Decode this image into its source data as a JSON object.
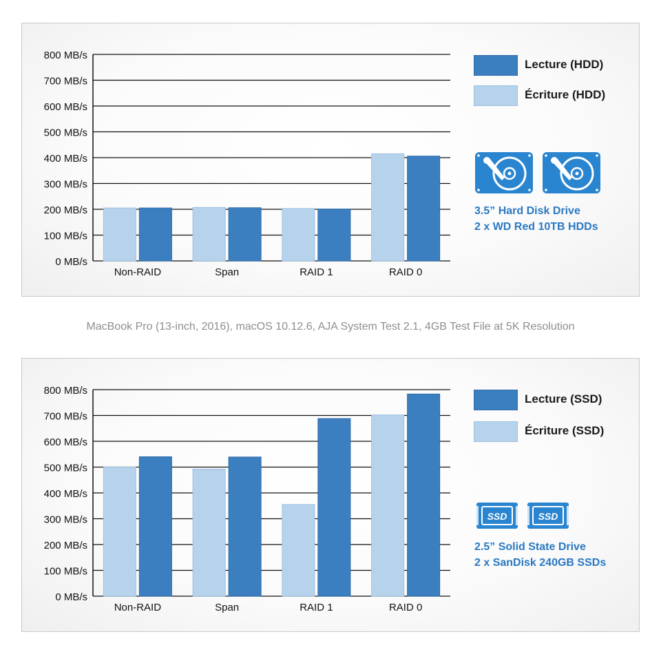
{
  "caption": "MacBook Pro (13-inch, 2016), macOS 10.12.6, AJA System Test 2.1, 4GB Test File at 5K Resolution",
  "colors": {
    "read": "#3c7fc0",
    "write": "#b7d3ec",
    "accent_text": "#2a78c2",
    "gridline": "#111111"
  },
  "hdd_panel": {
    "legend": {
      "read": "Lecture (HDD)",
      "write": "Écriture (HDD)"
    },
    "drive": {
      "line1": "3.5” Hard Disk Drive",
      "line2": "2 x WD Red 10TB HDDs",
      "icon": "hard-disk-drive-icon"
    }
  },
  "ssd_panel": {
    "legend": {
      "read": "Lecture (SSD)",
      "write": "Écriture (SSD)"
    },
    "drive": {
      "line1": "2.5” Solid State Drive",
      "line2": "2 x SanDisk 240GB SSDs",
      "icon": "ssd-icon",
      "icon_text": "SSD"
    }
  },
  "chart_data": [
    {
      "type": "bar",
      "categories": [
        "Non-RAID",
        "Span",
        "RAID 1",
        "RAID 0"
      ],
      "y_ticks": [
        "0 MB/s",
        "100 MB/s",
        "200 MB/s",
        "300 MB/s",
        "400 MB/s",
        "500 MB/s",
        "600 MB/s",
        "700 MB/s",
        "800 MB/s"
      ],
      "ylim": [
        0,
        800
      ],
      "grid": true,
      "legend_position": "right",
      "series": [
        {
          "name": "Écriture (HDD)",
          "values": [
            205,
            207,
            203,
            415
          ]
        },
        {
          "name": "Lecture (HDD)",
          "values": [
            205,
            206,
            201,
            406
          ]
        }
      ]
    },
    {
      "type": "bar",
      "categories": [
        "Non-RAID",
        "Span",
        "RAID 1",
        "RAID 0"
      ],
      "y_ticks": [
        "0 MB/s",
        "100 MB/s",
        "200 MB/s",
        "300 MB/s",
        "400 MB/s",
        "500 MB/s",
        "600 MB/s",
        "700 MB/s",
        "800 MB/s"
      ],
      "ylim": [
        0,
        800
      ],
      "grid": true,
      "legend_position": "right",
      "series": [
        {
          "name": "Écriture (SSD)",
          "values": [
            500,
            492,
            355,
            702
          ]
        },
        {
          "name": "Lecture (SSD)",
          "values": [
            540,
            539,
            688,
            783
          ]
        }
      ]
    }
  ]
}
